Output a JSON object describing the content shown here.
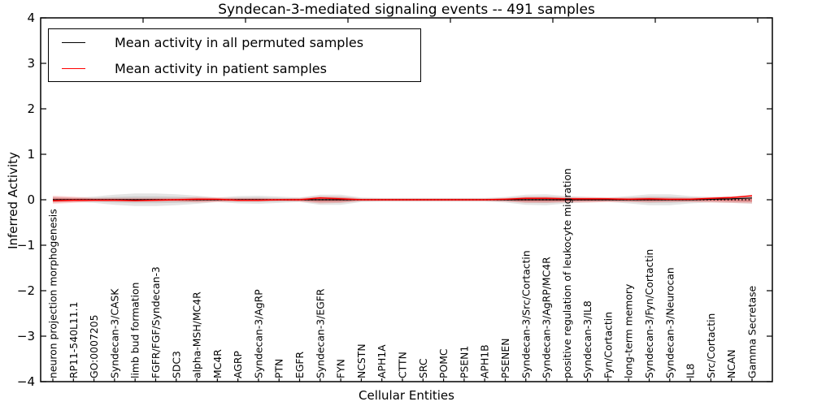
{
  "figure": {
    "title": "Syndecan-3-mediated signaling events -- 491 samples",
    "xlabel": "Cellular Entities",
    "ylabel": "Inferred Activity",
    "legend": [
      {
        "label": "Mean activity in all permuted samples",
        "color": "#000000"
      },
      {
        "label": "Mean activity in patient samples",
        "color": "#ff0000"
      }
    ]
  },
  "chart_data": {
    "type": "line",
    "title": "Syndecan-3-mediated signaling events -- 491 samples",
    "xlabel": "Cellular Entities",
    "ylabel": "Inferred Activity",
    "ylim": [
      -4,
      4
    ],
    "yticks": [
      4,
      3,
      2,
      1,
      0,
      -1,
      -2,
      -3,
      -4
    ],
    "ytick_labels": [
      "4",
      "3",
      "2",
      "1",
      "0",
      "−1",
      "−2",
      "−3",
      "−4"
    ],
    "grid": false,
    "legend_position": "upper left",
    "categories": [
      "neuron projection morphogenesis",
      "RP11-540L11.1",
      "GO:0007205",
      "Syndecan-3/CASK",
      "limb bud formation",
      "FGFR/FGF/Syndecan-3",
      "SDC3",
      "alpha-MSH/MC4R",
      "MC4R",
      "AGRP",
      "Syndecan-3/AgRP",
      "PTN",
      "EGFR",
      "Syndecan-3/EGFR",
      "FYN",
      "NCSTN",
      "APH1A",
      "CTTN",
      "SRC",
      "POMC",
      "PSEN1",
      "APH1B",
      "PSENEN",
      "Syndecan-3/Src/Cortactin",
      "Syndecan-3/AgRP/MC4R",
      "positive regulation of leukocyte migration",
      "Syndecan-3/IL8",
      "Fyn/Cortactin",
      "long-term memory",
      "Syndecan-3/Fyn/Cortactin",
      "Syndecan-3/Neurocan",
      "IL8",
      "Src/Cortactin",
      "NCAN",
      "Gamma Secretase"
    ],
    "series": [
      {
        "name": "Mean activity in all permuted samples",
        "color": "#000000",
        "values": [
          0,
          0,
          0,
          0,
          0,
          0,
          0,
          0,
          0,
          0,
          0,
          0,
          0,
          0,
          0,
          0,
          0,
          0,
          0,
          0,
          0,
          0,
          0,
          0,
          0,
          0,
          0,
          0,
          0,
          0,
          0,
          0,
          0.01,
          0.02,
          0.04
        ]
      },
      {
        "name": "Mean activity in patient samples",
        "color": "#ff0000",
        "values": [
          -0.02,
          -0.01,
          -0.01,
          -0.01,
          -0.02,
          -0.01,
          0,
          0.01,
          0.01,
          -0.01,
          -0.01,
          0,
          0,
          0.04,
          0.02,
          0,
          0,
          0,
          0,
          0,
          0,
          0,
          0.01,
          0.03,
          0.03,
          0.02,
          0.02,
          0.02,
          0.01,
          0.02,
          0.01,
          0.01,
          0.03,
          0.05,
          0.09
        ]
      }
    ],
    "bands": [
      {
        "name": "permuted samples range",
        "color": "#999999",
        "half_widths": [
          0.07,
          0.05,
          0.07,
          0.11,
          0.14,
          0.14,
          0.12,
          0.09,
          0.05,
          0.08,
          0.09,
          0.07,
          0.05,
          0.11,
          0.11,
          0.05,
          0.04,
          0.04,
          0.04,
          0.04,
          0.04,
          0.04,
          0.06,
          0.11,
          0.12,
          0.08,
          0.06,
          0.05,
          0.08,
          0.12,
          0.12,
          0.08,
          0.06,
          0.07,
          0.09
        ]
      },
      {
        "name": "patient samples range",
        "color": "#ff0000",
        "half_widths": [
          0.09,
          0.07,
          0.04,
          0.04,
          0.04,
          0.04,
          0.04,
          0.06,
          0.05,
          0.04,
          0.04,
          0.03,
          0.04,
          0.08,
          0.07,
          0.03,
          0.03,
          0.03,
          0.03,
          0.03,
          0.03,
          0.03,
          0.04,
          0.07,
          0.07,
          0.06,
          0.06,
          0.05,
          0.05,
          0.06,
          0.05,
          0.05,
          0.06,
          0.07,
          0.08
        ]
      }
    ],
    "zero_line": {
      "y": 0,
      "style": "dotted",
      "color": "#000000"
    }
  }
}
